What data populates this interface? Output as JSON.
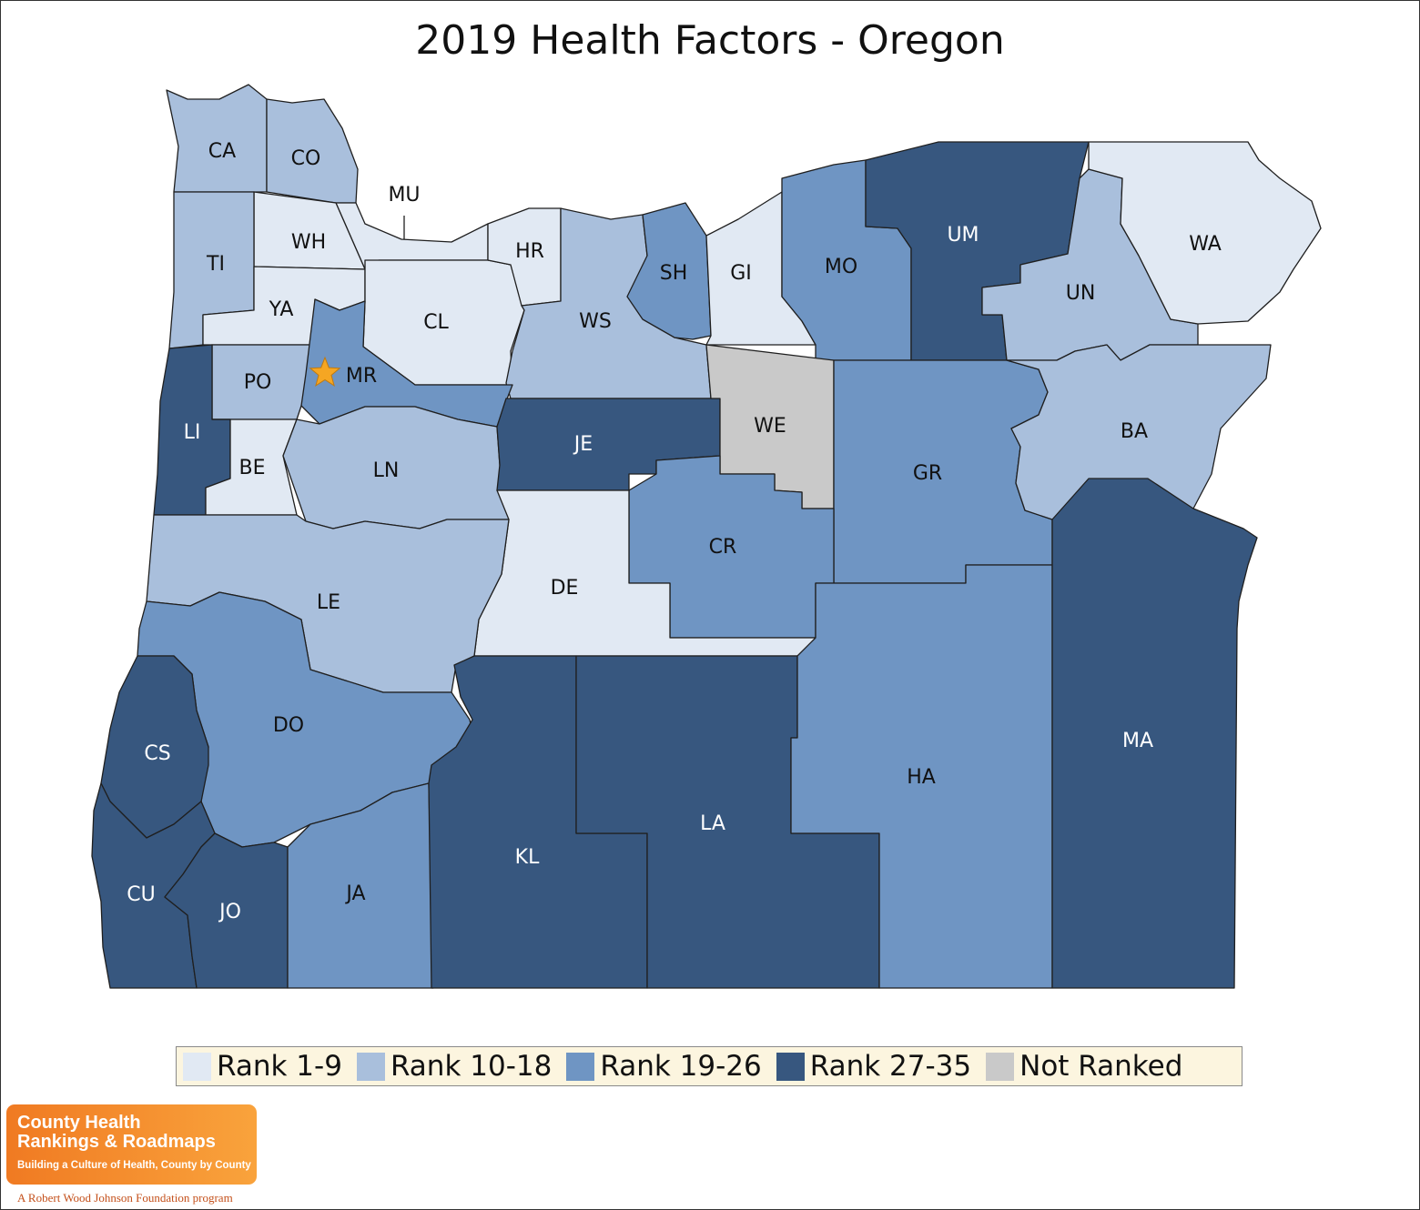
{
  "title": "2019 Health Factors - Oregon",
  "colors": {
    "rank_1_9": "#e1e9f3",
    "rank_10_18": "#a9bfdc",
    "rank_19_26": "#6f95c3",
    "rank_27_35": "#37577f",
    "not_ranked": "#c9c9c9"
  },
  "legend": [
    {
      "label": "Rank 1-9",
      "color": "#e1e9f3"
    },
    {
      "label": "Rank 10-18",
      "color": "#a9bfdc"
    },
    {
      "label": "Rank 19-26",
      "color": "#6f95c3"
    },
    {
      "label": "Rank 27-35",
      "color": "#37577f"
    },
    {
      "label": "Not Ranked",
      "color": "#c9c9c9"
    }
  ],
  "counties": [
    {
      "code": "CA",
      "rank_group": "Rank 10-18"
    },
    {
      "code": "CO",
      "rank_group": "Rank 10-18"
    },
    {
      "code": "MU",
      "rank_group": "Rank 1-9"
    },
    {
      "code": "WH",
      "rank_group": "Rank 1-9"
    },
    {
      "code": "TI",
      "rank_group": "Rank 10-18"
    },
    {
      "code": "YA",
      "rank_group": "Rank 1-9"
    },
    {
      "code": "CL",
      "rank_group": "Rank 1-9"
    },
    {
      "code": "HR",
      "rank_group": "Rank 1-9"
    },
    {
      "code": "WS",
      "rank_group": "Rank 10-18"
    },
    {
      "code": "SH",
      "rank_group": "Rank 19-26"
    },
    {
      "code": "GI",
      "rank_group": "Rank 1-9"
    },
    {
      "code": "MO",
      "rank_group": "Rank 19-26"
    },
    {
      "code": "UM",
      "rank_group": "Rank 27-35"
    },
    {
      "code": "UN",
      "rank_group": "Rank 10-18"
    },
    {
      "code": "WA",
      "rank_group": "Rank 1-9"
    },
    {
      "code": "PO",
      "rank_group": "Rank 10-18"
    },
    {
      "code": "MR",
      "rank_group": "Rank 19-26"
    },
    {
      "code": "LI",
      "rank_group": "Rank 27-35"
    },
    {
      "code": "BE",
      "rank_group": "Rank 1-9"
    },
    {
      "code": "LN",
      "rank_group": "Rank 10-18"
    },
    {
      "code": "JE",
      "rank_group": "Rank 27-35"
    },
    {
      "code": "WE",
      "rank_group": "Not Ranked"
    },
    {
      "code": "GR",
      "rank_group": "Rank 19-26"
    },
    {
      "code": "BA",
      "rank_group": "Rank 10-18"
    },
    {
      "code": "CR",
      "rank_group": "Rank 19-26"
    },
    {
      "code": "DE",
      "rank_group": "Rank 1-9"
    },
    {
      "code": "LE",
      "rank_group": "Rank 10-18"
    },
    {
      "code": "DO",
      "rank_group": "Rank 19-26"
    },
    {
      "code": "CS",
      "rank_group": "Rank 27-35"
    },
    {
      "code": "CU",
      "rank_group": "Rank 27-35"
    },
    {
      "code": "JO",
      "rank_group": "Rank 27-35"
    },
    {
      "code": "JA",
      "rank_group": "Rank 19-26"
    },
    {
      "code": "KL",
      "rank_group": "Rank 27-35"
    },
    {
      "code": "LA",
      "rank_group": "Rank 27-35"
    },
    {
      "code": "HA",
      "rank_group": "Rank 19-26"
    },
    {
      "code": "MA",
      "rank_group": "Rank 27-35"
    }
  ],
  "capital_marker": {
    "icon": "star-icon",
    "color": "#f5a623",
    "county": "MR"
  },
  "logo": {
    "line1": "County Health",
    "line2": "Rankings & Roadmaps",
    "tagline": "Building a Culture of Health, County by County"
  },
  "footer": "A Robert Wood Johnson Foundation program"
}
